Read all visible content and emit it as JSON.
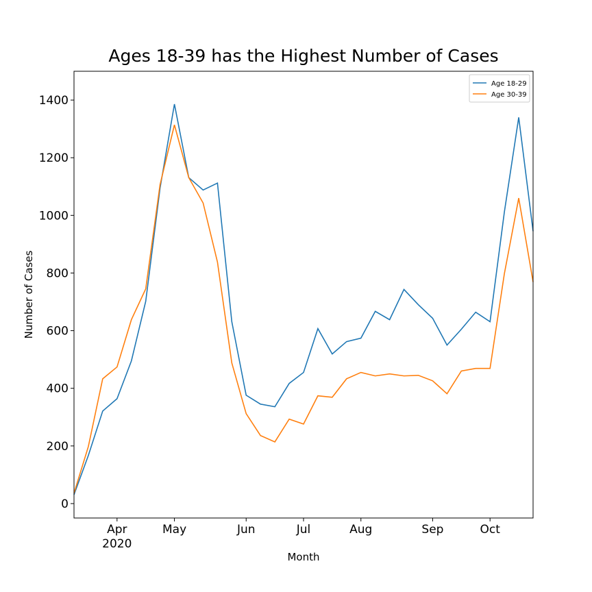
{
  "chart_data": {
    "type": "line",
    "title": "Ages 18-39 has the Highest Number of Cases",
    "x_label": "Month",
    "y_label": "Number of Cases",
    "categories": [
      null,
      null,
      null,
      null,
      null,
      null,
      null,
      null,
      null,
      null,
      null,
      null,
      null,
      null,
      null,
      null,
      null,
      null,
      null,
      null,
      null,
      null,
      null,
      null,
      null,
      null,
      null,
      null,
      null,
      null,
      null,
      null,
      null
    ],
    "series": [
      {
        "name": "Age 18-29",
        "color": "#1f77b4",
        "values": [
          31,
          167,
          321,
          364,
          495,
          702,
          1095,
          1386,
          1131,
          1088,
          1112,
          631,
          376,
          345,
          336,
          417,
          455,
          607,
          519,
          562,
          574,
          667,
          638,
          743,
          690,
          643,
          550,
          605,
          664,
          631,
          1012,
          1340,
          945
        ]
      },
      {
        "name": "Age 30-39",
        "color": "#ff7f0e",
        "values": [
          36,
          198,
          433,
          474,
          638,
          745,
          1107,
          1314,
          1131,
          1043,
          838,
          488,
          312,
          236,
          214,
          293,
          276,
          374,
          369,
          433,
          455,
          443,
          450,
          443,
          445,
          426,
          381,
          460,
          469,
          469,
          798,
          1060,
          769
        ]
      }
    ],
    "xlim": [
      0,
      32
    ],
    "xticks": [
      {
        "value": 3,
        "label": "Apr\n2020"
      },
      {
        "value": 7,
        "label": "May"
      },
      {
        "value": 12,
        "label": "Jun"
      },
      {
        "value": 16,
        "label": "Jul"
      },
      {
        "value": 20,
        "label": "Aug"
      },
      {
        "value": 25,
        "label": "Sep"
      },
      {
        "value": 29,
        "label": "Oct"
      }
    ],
    "ylim": [
      -50,
      1500
    ],
    "yticks": [
      0,
      200,
      400,
      600,
      800,
      1000,
      1200,
      1400
    ],
    "grid": false,
    "legend": "upper right"
  }
}
